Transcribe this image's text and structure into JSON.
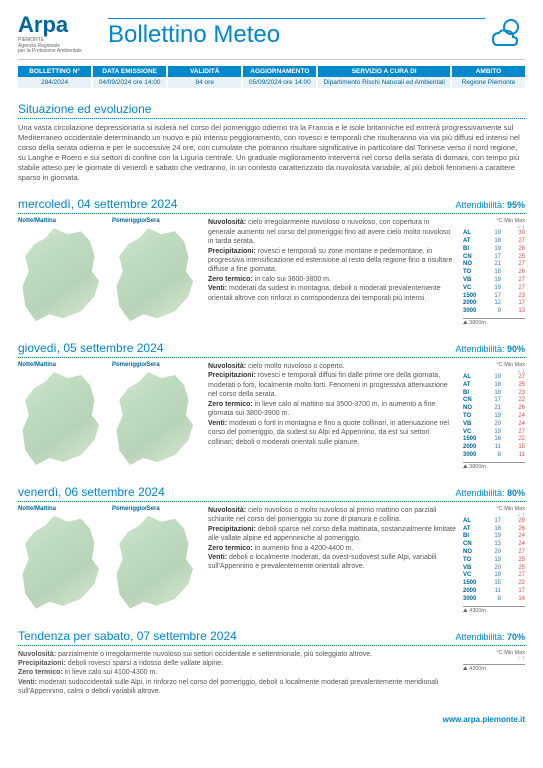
{
  "header": {
    "logo_main": "Arpa",
    "logo_region": "PIEMONTE",
    "logo_sub1": "Agenzia Regionale",
    "logo_sub2": "per la Protezione Ambientale",
    "title": "Bollettino Meteo"
  },
  "info_bar": [
    {
      "label": "BOLLETTINO N°",
      "value": "284/2024"
    },
    {
      "label": "DATA EMISSIONE",
      "value": "04/09/2024 ore 14:00"
    },
    {
      "label": "VALIDITÀ",
      "value": "84 ore"
    },
    {
      "label": "AGGIORNAMENTO",
      "value": "05/09/2024 ore 14:00"
    },
    {
      "label": "SERVIZIO A CURA DI",
      "value": "Dipartimento Rischi Naturali ed Ambientali"
    },
    {
      "label": "AMBITO",
      "value": "Regione Piemonte"
    }
  ],
  "situation": {
    "title": "Situazione ed evoluzione",
    "text": "Una vasta circolazione depressionaria si isolerà nel corso del pomeriggio odierno tra la Francia e le isole britanniche ed entrerà progressivamente sul Mediterraneo occidentale determinando un nuovo e più intenso peggioramento, con rovesci e temporali che risulteranno via via più diffusi ed intensi nel corso della serata odierna e per le successive 24 ore, con cumulate che potranno risultare significative in particolare dal Torinese verso il nord regione, su Langhe e Roero e sui settori di confine con la Liguria centrale. Un graduale miglioramento interverrà nel corso della serata di domani, con tempo più stabile atteso per le giornate di venerdì e sabato che vedranno, in un contesto caratterizzato da nuvolosità variabile, al più deboli fenomeni a carattere sparso in giornata."
  },
  "days": [
    {
      "title": "mercoledì, 04 settembre 2024",
      "reliability_label": "Attendibilità:",
      "reliability": "95%",
      "map_labels": [
        "Notte/Mattina",
        "Pomeriggio/Sera"
      ],
      "forecast": {
        "nuvolosita": "cielo irregolarmente nuvoloso o nuvoloso, con copertura in generale aumento nel corso del pomeriggio fino ad avere cielo molto nuvoloso in tarda serata.",
        "precipitazioni": "rovesci e temporali su zone montane e pedemontane, in progressiva intensificazione ed estensione al resto della regione fino a risultare diffuse a fine giornata.",
        "zero_termico": "in calo sui 3600-3800 m.",
        "venti": "moderati da sudest in montagna, deboli o moderati prevalentemente orientali altrove con rinforzi in corrispondenza dei temporali più intensi."
      },
      "temps": [
        {
          "p": "AL",
          "min": "19",
          "max": "30"
        },
        {
          "p": "AT",
          "min": "18",
          "max": "27"
        },
        {
          "p": "BI",
          "min": "19",
          "max": "26"
        },
        {
          "p": "CN",
          "min": "17",
          "max": "25"
        },
        {
          "p": "NO",
          "min": "21",
          "max": "27"
        },
        {
          "p": "TO",
          "min": "18",
          "max": "26"
        },
        {
          "p": "VB",
          "min": "19",
          "max": "27"
        },
        {
          "p": "VC",
          "min": "19",
          "max": "27"
        },
        {
          "p": "1500",
          "min": "17",
          "max": "23"
        },
        {
          "p": "2000",
          "min": "12",
          "max": "17"
        },
        {
          "p": "3000",
          "min": "9",
          "max": "13"
        }
      ],
      "altitude": "3800m",
      "arrows": {
        "min": "↓",
        "max": "↓"
      }
    },
    {
      "title": "giovedì, 05 settembre 2024",
      "reliability_label": "Attendibilità:",
      "reliability": "90%",
      "map_labels": [
        "Notte/Mattina",
        "Pomeriggio/Sera"
      ],
      "forecast": {
        "nuvolosita": "cielo molto nuvoloso o coperto.",
        "precipitazioni": "rovesci e temporali diffusi fin dalle prime ore della giornata, moderati o forti, localmente molto forti. Fenomeni in progressiva attenuazione nel corso della serata.",
        "zero_termico": "in lieve calo al mattino sui 3500-3700 m, in aumento a fine giornata sui 3800-3900 m.",
        "venti": "moderati o forti in montagna e fino a quote collinari, in attenuazione nel corso del pomeriggio, da sudest su Alpi ed Appennino, da est sui settori collinari; deboli o moderati orientali sulle pianure."
      },
      "temps": [
        {
          "p": "AL",
          "min": "19",
          "max": "27"
        },
        {
          "p": "AT",
          "min": "18",
          "max": "25"
        },
        {
          "p": "BI",
          "min": "18",
          "max": "23"
        },
        {
          "p": "CN",
          "min": "17",
          "max": "22"
        },
        {
          "p": "NO",
          "min": "21",
          "max": "26"
        },
        {
          "p": "TO",
          "min": "19",
          "max": "24"
        },
        {
          "p": "VB",
          "min": "20",
          "max": "24"
        },
        {
          "p": "VC",
          "min": "19",
          "max": "27"
        },
        {
          "p": "1500",
          "min": "16",
          "max": "22"
        },
        {
          "p": "2000",
          "min": "11",
          "max": "15"
        },
        {
          "p": "3000",
          "min": "8",
          "max": "11"
        }
      ],
      "altitude": "3800m",
      "arrows": {
        "min": "↓",
        "max": "↓"
      }
    },
    {
      "title": "venerdì, 06 settembre 2024",
      "reliability_label": "Attendibilità:",
      "reliability": "80%",
      "map_labels": [
        "Notte/Mattina",
        "Pomeriggio/Sera"
      ],
      "forecast": {
        "nuvolosita": "cielo nuvoloso o molto nuvoloso al primo mattino con parziali schiarite nel corso del pomeriggio su zone di pianura e collina.",
        "precipitazioni": "deboli sparse nel corso della mattinata, sostanzialmente limitate alle vallate alpine ed appenniniche al pomeriggio.",
        "zero_termico": "in aumento fino a 4200-4400 m.",
        "venti": "deboli o localmente moderati, da ovest-sudovest sulle Alpi, variabili sull'Appennino e prevalentemente orientali altrove."
      },
      "temps": [
        {
          "p": "AL",
          "min": "17",
          "max": "29"
        },
        {
          "p": "AT",
          "min": "18",
          "max": "26"
        },
        {
          "p": "BI",
          "min": "19",
          "max": "24"
        },
        {
          "p": "CN",
          "min": "13",
          "max": "24"
        },
        {
          "p": "NO",
          "min": "20",
          "max": "27"
        },
        {
          "p": "TO",
          "min": "19",
          "max": "25"
        },
        {
          "p": "VB",
          "min": "20",
          "max": "25"
        },
        {
          "p": "VC",
          "min": "19",
          "max": "27"
        },
        {
          "p": "1500",
          "min": "15",
          "max": "22"
        },
        {
          "p": "2000",
          "min": "11",
          "max": "17"
        },
        {
          "p": "3000",
          "min": "8",
          "max": "14"
        }
      ],
      "altitude": "4300m",
      "arrows": {
        "min": "↓",
        "max": "↑"
      }
    }
  ],
  "trend": {
    "title": "Tendenza per sabato, 07 settembre 2024",
    "reliability_label": "Attendibilità:",
    "reliability": "70%",
    "forecast": {
      "nuvolosita": "parzialmente o irregolarmente nuvoloso sui settori occidentale e settentrionale, più soleggiato altrove.",
      "precipitazioni": "deboli rovesci sparsi a ridosso delle vallate alpine.",
      "zero_termico": "in lieve calo sui 4100-4300 m.",
      "venti": "moderati sudoccidentali sulle Alpi, in rinforzo nel corso del pomeriggio, deboli o localmente moderati prevalentemente meridionali sull'Appennino, calmi o deboli variabili altrove."
    },
    "altitude": "4200m",
    "arrows": {
      "min": "↑",
      "max": "↑"
    }
  },
  "labels": {
    "nuvolosita": "Nuvolosità:",
    "precipitazioni": "Precipitazioni:",
    "zero_termico": "Zero termico:",
    "venti": "Venti:",
    "temp_header": "°C Min Max"
  },
  "footer": "www.arpa.piemonte.it",
  "colors": {
    "primary": "#0088cc",
    "dark_primary": "#0066a0",
    "bg_light": "#e8f2f7",
    "min_color": "#3a7cb8",
    "max_color": "#d9534f"
  }
}
